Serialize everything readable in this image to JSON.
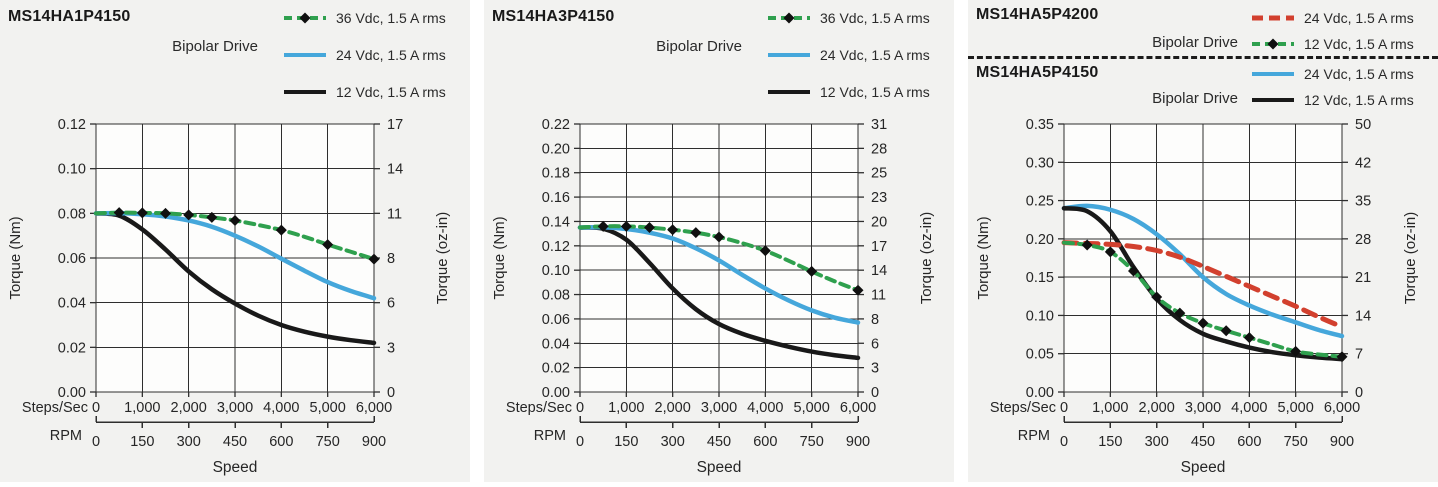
{
  "shared": {
    "drive_mode": "Bipolar Drive",
    "text_color": "#2a2a2a",
    "grid_color": "#2e2e2e",
    "panel_bg": "#f2f2f0",
    "plot_bg": "#fdfdfc"
  },
  "chart_data": [
    {
      "type": "line",
      "titles": [
        "MS14HA1P4150"
      ],
      "drive_labels": [
        "Bipolar Drive"
      ],
      "xlabel": "Speed",
      "x_row_label": "Steps/Sec",
      "rpm_row_label": "RPM",
      "x_ticks": [
        "0",
        "1,000",
        "2,000",
        "3,000",
        "4,000",
        "5,000",
        "6,000"
      ],
      "rpm_ticks": [
        "0",
        "150",
        "300",
        "450",
        "600",
        "750",
        "900"
      ],
      "ylabel_left": "Torque (Nm)",
      "ylabel_right": "Torque (oz-in)",
      "xlim": [
        0,
        6000
      ],
      "ylim": [
        0,
        0.12
      ],
      "left_ticks": [
        "0.00",
        "0.02",
        "0.04",
        "0.06",
        "0.08",
        "0.10",
        "0.12"
      ],
      "right_ticks": [
        "0",
        "3",
        "6",
        "8",
        "11",
        "14",
        "17"
      ],
      "grid": true,
      "x": [
        0,
        500,
        1000,
        1500,
        2000,
        2500,
        3000,
        3500,
        4000,
        4500,
        5000,
        5500,
        6000
      ],
      "draw_order": [
        2,
        1,
        0
      ],
      "series": [
        {
          "name": "36 Vdc, 1.5 A rms",
          "color": "#2FA04E",
          "style": "dashed",
          "dash": "9 6",
          "width": 4,
          "y": [
            0.08,
            0.0803,
            0.0802,
            0.08,
            0.0793,
            0.0782,
            0.0768,
            0.0748,
            0.0725,
            0.0695,
            0.066,
            0.0628,
            0.0595
          ],
          "markers": [
            500,
            1000,
            1500,
            2000,
            2500,
            3000,
            4000,
            5000,
            6000
          ]
        },
        {
          "name": "24 Vdc, 1.5 A rms",
          "color": "#45A7DB",
          "style": "solid",
          "width": 4.5,
          "y": [
            0.08,
            0.0801,
            0.0796,
            0.0786,
            0.0768,
            0.074,
            0.07,
            0.0652,
            0.0597,
            0.0543,
            0.0492,
            0.0452,
            0.042
          ]
        },
        {
          "name": "12 Vdc, 1.5 A rms",
          "color": "#191919",
          "style": "solid",
          "width": 4.5,
          "y": [
            0.08,
            0.079,
            0.0728,
            0.0638,
            0.054,
            0.046,
            0.0396,
            0.0342,
            0.03,
            0.027,
            0.0248,
            0.0232,
            0.022
          ]
        }
      ]
    },
    {
      "type": "line",
      "titles": [
        "MS14HA3P4150"
      ],
      "drive_labels": [
        "Bipolar Drive"
      ],
      "xlabel": "Speed",
      "x_row_label": "Steps/Sec",
      "rpm_row_label": "RPM",
      "x_ticks": [
        "0",
        "1,000",
        "2,000",
        "3,000",
        "4,000",
        "5,000",
        "6,000"
      ],
      "rpm_ticks": [
        "0",
        "150",
        "300",
        "450",
        "600",
        "750",
        "900"
      ],
      "ylabel_left": "Torque (Nm)",
      "ylabel_right": "Torque (oz-in)",
      "xlim": [
        0,
        6000
      ],
      "ylim": [
        0,
        0.22
      ],
      "left_ticks": [
        "0.00",
        "0.02",
        "0.04",
        "0.06",
        "0.08",
        "0.10",
        "0.12",
        "0.14",
        "0.16",
        "0.18",
        "0.20",
        "0.22"
      ],
      "right_ticks": [
        "0",
        "3",
        "6",
        "8",
        "11",
        "14",
        "17",
        "20",
        "23",
        "25",
        "28",
        "31"
      ],
      "grid": true,
      "x": [
        0,
        500,
        1000,
        1500,
        2000,
        2500,
        3000,
        3500,
        4000,
        4500,
        5000,
        5500,
        6000
      ],
      "draw_order": [
        2,
        1,
        0
      ],
      "series": [
        {
          "name": "36 Vdc, 1.5 A rms",
          "color": "#2FA04E",
          "style": "dashed",
          "dash": "9 6",
          "width": 4,
          "y": [
            0.135,
            0.136,
            0.136,
            0.135,
            0.1332,
            0.1308,
            0.1272,
            0.1222,
            0.116,
            0.1078,
            0.099,
            0.0908,
            0.0835
          ],
          "markers": [
            500,
            1000,
            1500,
            2000,
            2500,
            3000,
            4000,
            5000,
            6000
          ]
        },
        {
          "name": "24 Vdc, 1.5 A rms",
          "color": "#45A7DB",
          "style": "solid",
          "width": 4.5,
          "y": [
            0.135,
            0.1352,
            0.1338,
            0.1308,
            0.126,
            0.118,
            0.108,
            0.0962,
            0.085,
            0.0752,
            0.067,
            0.061,
            0.057
          ]
        },
        {
          "name": "12 Vdc, 1.5 A rms",
          "color": "#191919",
          "style": "solid",
          "width": 4.5,
          "y": [
            0.135,
            0.134,
            0.125,
            0.106,
            0.085,
            0.068,
            0.0558,
            0.0478,
            0.042,
            0.0372,
            0.0332,
            0.0302,
            0.028
          ]
        }
      ]
    },
    {
      "type": "line",
      "titles": [
        "MS14HA5P4200",
        "MS14HA5P4150"
      ],
      "drive_labels": [
        "Bipolar Drive",
        "Bipolar Drive"
      ],
      "xlabel": "Speed",
      "x_row_label": "Steps/Sec",
      "rpm_row_label": "RPM",
      "x_ticks": [
        "0",
        "1,000",
        "2,000",
        "3,000",
        "4,000",
        "5,000",
        "6,000"
      ],
      "rpm_ticks": [
        "0",
        "150",
        "300",
        "450",
        "600",
        "750",
        "900"
      ],
      "ylabel_left": "Torque (Nm)",
      "ylabel_right": "Torque (oz-in)",
      "xlim": [
        0,
        6000
      ],
      "ylim": [
        0,
        0.35
      ],
      "left_ticks": [
        "0.00",
        "0.05",
        "0.10",
        "0.15",
        "0.20",
        "0.25",
        "0.30",
        "0.35"
      ],
      "right_ticks": [
        "0",
        "7",
        "14",
        "21",
        "28",
        "35",
        "42",
        "50"
      ],
      "grid": true,
      "x": [
        0,
        500,
        1000,
        1500,
        2000,
        2500,
        3000,
        3500,
        4000,
        4500,
        5000,
        5500,
        6000
      ],
      "draw_order": [
        2,
        3,
        0,
        1
      ],
      "series": [
        {
          "name": "24 Vdc, 1.5 A rms",
          "model": "MS14HA5P4200",
          "color": "#D2402E",
          "style": "dashed",
          "dash": "13 8",
          "width": 5,
          "y": [
            0.195,
            0.194,
            0.1928,
            0.19,
            0.1848,
            0.1762,
            0.164,
            0.151,
            0.138,
            0.125,
            0.112,
            0.098,
            0.085
          ]
        },
        {
          "name": "12 Vdc, 1.5 A rms",
          "model": "MS14HA5P4200",
          "color": "#2FA04E",
          "style": "dashed",
          "dash": "9 6",
          "width": 4,
          "y": [
            0.195,
            0.192,
            0.183,
            0.158,
            0.124,
            0.103,
            0.09,
            0.08,
            0.071,
            0.062,
            0.053,
            0.049,
            0.046
          ],
          "markers": [
            500,
            1000,
            1500,
            2000,
            2500,
            3000,
            3500,
            4000,
            5000,
            6000
          ]
        },
        {
          "name": "24 Vdc, 1.5 A rms",
          "model": "MS14HA5P4150",
          "color": "#45A7DB",
          "style": "solid",
          "width": 4.5,
          "y": [
            0.24,
            0.243,
            0.238,
            0.226,
            0.206,
            0.18,
            0.15,
            0.128,
            0.113,
            0.101,
            0.091,
            0.081,
            0.073
          ]
        },
        {
          "name": "12 Vdc, 1.5 A rms",
          "model": "MS14HA5P4150",
          "color": "#191919",
          "style": "solid",
          "width": 4.5,
          "y": [
            0.24,
            0.236,
            0.21,
            0.163,
            0.122,
            0.094,
            0.076,
            0.066,
            0.058,
            0.052,
            0.048,
            0.045,
            0.043
          ]
        }
      ]
    }
  ]
}
